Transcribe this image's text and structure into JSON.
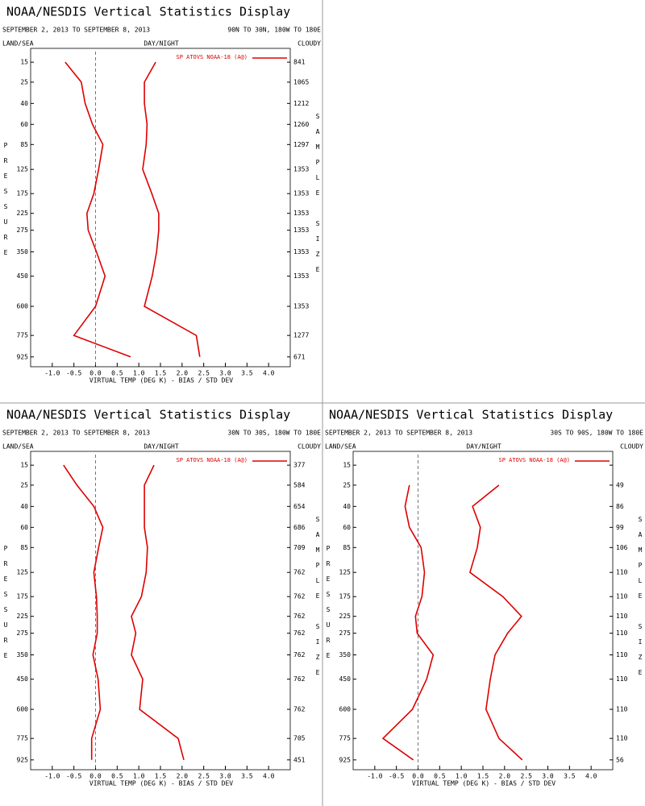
{
  "chart_data": [
    {
      "type": "line",
      "title": "NOAA/NESDIS Vertical Statistics Display",
      "subtitle": "SEPTEMBER 2, 2013 TO SEPTEMBER 8, 2013",
      "region": "90N TO 30N, 180W TO 180E",
      "land_sea": "LAND/SEA",
      "day_night": "DAY/NIGHT",
      "cloudy": "CLOUDY",
      "ylabel": "PRESSURE",
      "y2label": "SAMPLE SIZE",
      "xlabel": "VIRTUAL TEMP (DEG K) - BIAS / STD DEV",
      "ylim": [
        10,
        1000
      ],
      "yticks": [
        15,
        25,
        40,
        60,
        85,
        125,
        175,
        225,
        275,
        350,
        450,
        600,
        775,
        925
      ],
      "xlim": [
        -1.5,
        4.5
      ],
      "xticks": [
        {
          "value": -1,
          "label": "-1.0"
        },
        -0.5,
        {
          "value": 0,
          "label": "0.0"
        },
        0.5,
        {
          "value": 1,
          "label": "1.0"
        },
        1.5,
        {
          "value": 2,
          "label": "2.0"
        },
        2.5,
        {
          "value": 3,
          "label": "3.0"
        },
        3.5,
        {
          "value": 4,
          "label": "4.0"
        }
      ],
      "sample_size": [
        841,
        1065,
        1212,
        1260,
        1297,
        1353,
        1353,
        1353,
        1353,
        1353,
        1353,
        1353,
        1277,
        671
      ],
      "series": [
        {
          "name": "SP ATOVS NOAA-18 (A@)",
          "color": "#dd0000",
          "bias": [
            -0.7,
            -0.33,
            -0.24,
            -0.07,
            0.17,
            0.07,
            -0.04,
            -0.2,
            -0.17,
            0.02,
            0.22,
            0.0,
            -0.5,
            0.81
          ],
          "std_dev": [
            1.39,
            1.13,
            1.13,
            1.19,
            1.17,
            1.09,
            1.3,
            1.46,
            1.46,
            1.41,
            1.31,
            1.13,
            2.33,
            2.41
          ]
        }
      ]
    },
    {
      "type": "line",
      "title": "NOAA/NESDIS Vertical Statistics Display",
      "subtitle": "SEPTEMBER 2, 2013 TO SEPTEMBER 8, 2013",
      "region": "30N TO 30S, 180W TO 180E",
      "land_sea": "LAND/SEA",
      "day_night": "DAY/NIGHT",
      "cloudy": "CLOUDY",
      "ylabel": "PRESSURE",
      "y2label": "SAMPLE SIZE",
      "xlabel": "VIRTUAL TEMP (DEG K) - BIAS / STD DEV",
      "ylim": [
        10,
        1000
      ],
      "yticks": [
        15,
        25,
        40,
        60,
        85,
        125,
        175,
        225,
        275,
        350,
        450,
        600,
        775,
        925
      ],
      "xlim": [
        -1.5,
        4.5
      ],
      "xticks": [
        {
          "value": -1,
          "label": "-1.0"
        },
        -0.5,
        {
          "value": 0,
          "label": "0.0"
        },
        0.5,
        {
          "value": 1,
          "label": "1.0"
        },
        1.5,
        {
          "value": 2,
          "label": "2.0"
        },
        2.5,
        {
          "value": 3,
          "label": "3.0"
        },
        3.5,
        {
          "value": 4,
          "label": "4.0"
        }
      ],
      "sample_size": [
        377,
        584,
        654,
        686,
        709,
        762,
        762,
        762,
        762,
        762,
        762,
        762,
        705,
        451
      ],
      "series": [
        {
          "name": "SP ATOVS NOAA-18 (A@)",
          "color": "#dd0000",
          "bias": [
            -0.74,
            -0.43,
            -0.04,
            0.17,
            0.07,
            -0.04,
            0.02,
            0.04,
            0.04,
            -0.06,
            0.06,
            0.11,
            -0.09,
            -0.09
          ],
          "std_dev": [
            1.35,
            1.13,
            1.13,
            1.13,
            1.2,
            1.17,
            1.06,
            0.83,
            0.93,
            0.83,
            1.09,
            1.02,
            1.91,
            2.04
          ]
        }
      ]
    },
    {
      "type": "line",
      "title": "NOAA/NESDIS Vertical Statistics Display",
      "subtitle": "SEPTEMBER 2, 2013 TO SEPTEMBER 8, 2013",
      "region": "30S TO 90S, 180W TO 180E",
      "land_sea": "LAND/SEA",
      "day_night": "DAY/NIGHT",
      "cloudy": "CLOUDY",
      "ylabel": "PRESSURE",
      "y2label": "SAMPLE SIZE",
      "xlabel": "VIRTUAL TEMP (DEG K) - BIAS / STD DEV",
      "ylim": [
        10,
        1000
      ],
      "yticks": [
        15,
        25,
        40,
        60,
        85,
        125,
        175,
        225,
        275,
        350,
        450,
        600,
        775,
        925
      ],
      "xlim": [
        -1.5,
        4.5
      ],
      "xticks": [
        {
          "value": -1,
          "label": "-1.0"
        },
        -0.5,
        {
          "value": 0,
          "label": "0.0"
        },
        0.5,
        {
          "value": 1,
          "label": "1.0"
        },
        1.5,
        {
          "value": 2,
          "label": "2.0"
        },
        2.5,
        {
          "value": 3,
          "label": "3.0"
        },
        3.5,
        {
          "value": 4,
          "label": "4.0"
        }
      ],
      "sample_size": [
        null,
        49,
        86,
        99,
        106,
        110,
        110,
        110,
        110,
        110,
        110,
        110,
        110,
        56
      ],
      "series": [
        {
          "name": "SP ATOVS NOAA-18 (A@)",
          "color": "#dd0000",
          "bias": [
            null,
            -0.2,
            -0.3,
            -0.2,
            0.07,
            0.15,
            0.09,
            -0.06,
            -0.02,
            0.35,
            0.2,
            -0.13,
            -0.81,
            -0.11
          ],
          "std_dev": [
            null,
            1.87,
            1.26,
            1.44,
            1.37,
            1.2,
            1.96,
            2.39,
            2.07,
            1.78,
            1.67,
            1.57,
            1.87,
            2.41
          ]
        }
      ]
    }
  ]
}
